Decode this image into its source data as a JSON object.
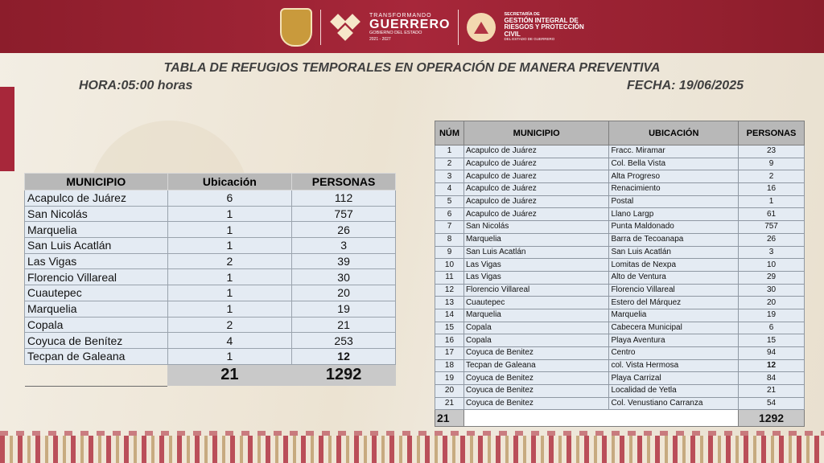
{
  "header": {
    "gob_line1": "TRANSFORMANDO",
    "gob_line2": "GUERRERO",
    "gob_line3": "GOBIERNO DEL ESTADO",
    "gob_line4": "2021 - 2027",
    "pc_line1": "SECRETARÍA DE",
    "pc_line2": "GESTIÓN INTEGRAL DE RIESGOS Y PROTECCIÓN CIVIL",
    "pc_line3": "DEL ESTADO DE GUERRERO"
  },
  "title": "TABLA DE REFUGIOS TEMPORALES EN OPERACIÓN DE MANERA PREVENTIVA",
  "hora": "HORA:05:00  horas",
  "fecha": "FECHA:  19/06/2025",
  "summary": {
    "headers": [
      "MUNICIPIO",
      "Ubicación",
      "PERSONAS"
    ],
    "rows": [
      {
        "municipio": "Acapulco de Juárez",
        "ubicacion": "6",
        "personas": "112"
      },
      {
        "municipio": "San Nicolás",
        "ubicacion": "1",
        "personas": "757"
      },
      {
        "municipio": "Marquelia",
        "ubicacion": "1",
        "personas": "26"
      },
      {
        "municipio": "San Luis Acatlán",
        "ubicacion": "1",
        "personas": "3"
      },
      {
        "municipio": "Las Vigas",
        "ubicacion": "2",
        "personas": "39"
      },
      {
        "municipio": "Florencio Villareal",
        "ubicacion": "1",
        "personas": "30"
      },
      {
        "municipio": "Cuautepec",
        "ubicacion": "1",
        "personas": "20"
      },
      {
        "municipio": "Marquelia",
        "ubicacion": "1",
        "personas": "19"
      },
      {
        "municipio": "Copala",
        "ubicacion": "2",
        "personas": "21"
      },
      {
        "municipio": "Coyuca de Benítez",
        "ubicacion": "4",
        "personas": "253"
      },
      {
        "municipio": "Tecpan de Galeana",
        "ubicacion": "1",
        "personas": "12"
      }
    ],
    "total_ubicaciones": "21",
    "total_personas": "1292"
  },
  "detail": {
    "headers": [
      "NÚM",
      "MUNICIPIO",
      "UBICACIÓN",
      "PERSONAS"
    ],
    "rows": [
      {
        "num": "1",
        "municipio": "Acapulco de Juárez",
        "ubicacion": "Fracc. Miramar",
        "personas": "23"
      },
      {
        "num": "2",
        "municipio": "Acapulco de Juárez",
        "ubicacion": "Col. Bella Vista",
        "personas": "9"
      },
      {
        "num": "3",
        "municipio": "Acapulco de Juarez",
        "ubicacion": "Alta Progreso",
        "personas": "2"
      },
      {
        "num": "4",
        "municipio": "Acapulco de Juárez",
        "ubicacion": "Renacimiento",
        "personas": "16"
      },
      {
        "num": "5",
        "municipio": "Acapulco de Juárez",
        "ubicacion": "Postal",
        "personas": "1"
      },
      {
        "num": "6",
        "municipio": "Acapulco de Juárez",
        "ubicacion": "Llano Largp",
        "personas": "61"
      },
      {
        "num": "7",
        "municipio": "San Nicolás",
        "ubicacion": "Punta Maldonado",
        "personas": "757"
      },
      {
        "num": "8",
        "municipio": "Marquelia",
        "ubicacion": "Barra de Tecoanapa",
        "personas": "26"
      },
      {
        "num": "9",
        "municipio": "San Luis Acatlán",
        "ubicacion": "San Luis Acatlán",
        "personas": "3"
      },
      {
        "num": "10",
        "municipio": "Las Vigas",
        "ubicacion": "Lomitas de Nexpa",
        "personas": "10"
      },
      {
        "num": "11",
        "municipio": "Las Vigas",
        "ubicacion": "Alto de Ventura",
        "personas": "29"
      },
      {
        "num": "12",
        "municipio": "Florencio Villareal",
        "ubicacion": "Florencio Villareal",
        "personas": "30"
      },
      {
        "num": "13",
        "municipio": "Cuautepec",
        "ubicacion": "Estero del Márquez",
        "personas": "20"
      },
      {
        "num": "14",
        "municipio": "Marquelia",
        "ubicacion": "Marquelia",
        "personas": "19"
      },
      {
        "num": "15",
        "municipio": "Copala",
        "ubicacion": "Cabecera Municipal",
        "personas": "6"
      },
      {
        "num": "16",
        "municipio": "Copala",
        "ubicacion": "Playa Aventura",
        "personas": "15"
      },
      {
        "num": "17",
        "municipio": "Coyuca de Benitez",
        "ubicacion": "Centro",
        "personas": "94"
      },
      {
        "num": "18",
        "municipio": "Tecpan de Galeana",
        "ubicacion": "col. Vista Hermosa",
        "personas": "12"
      },
      {
        "num": "19",
        "municipio": "Coyuca de Benitez",
        "ubicacion": "Playa Carrizal",
        "personas": "84"
      },
      {
        "num": "20",
        "municipio": "Coyuca de Benitez",
        "ubicacion": "Localidad de Yetla",
        "personas": "21"
      },
      {
        "num": "21",
        "municipio": "Coyuca de Benitez",
        "ubicacion": "Col. Venustiano Carranza",
        "personas": "54"
      }
    ],
    "total_num": "21",
    "total_personas": "1292"
  }
}
